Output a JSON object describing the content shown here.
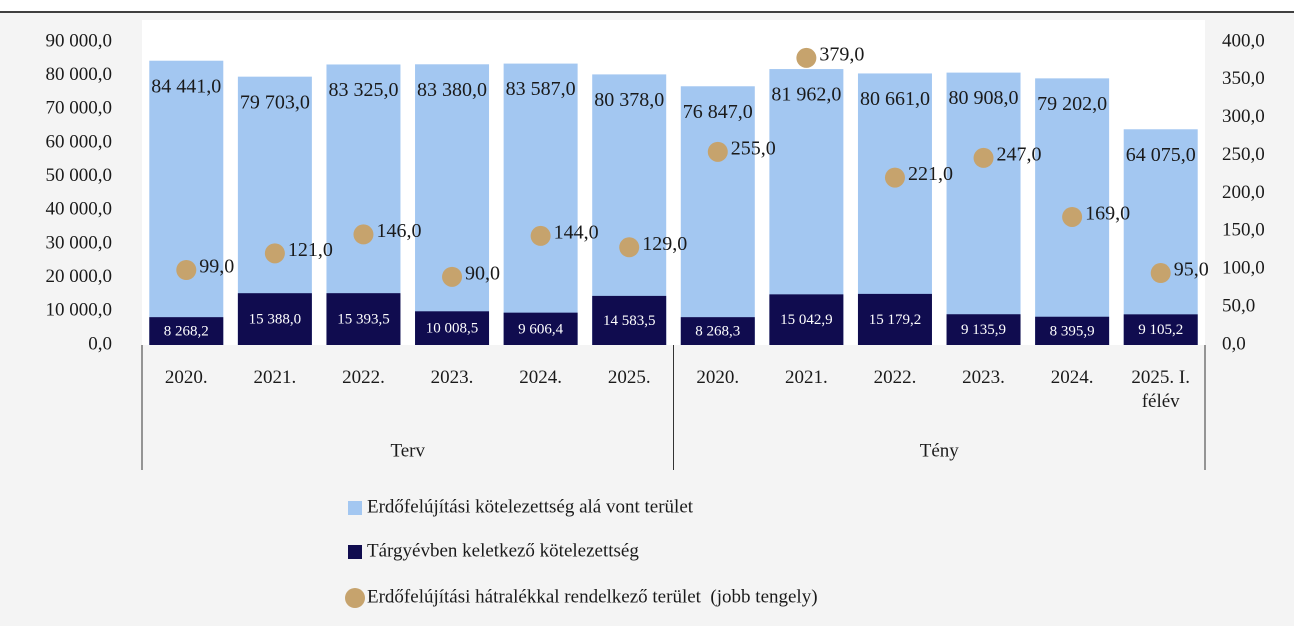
{
  "chart_data": {
    "type": "bar",
    "categories": [
      "2020.",
      "2021.",
      "2022.",
      "2023.",
      "2024.",
      "2025.",
      "2020.",
      "2021.",
      "2022.",
      "2023.",
      "2024.",
      "2025. I. félév"
    ],
    "groups": [
      {
        "label": "Terv",
        "count": 6
      },
      {
        "label": "Tény",
        "count": 6
      }
    ],
    "series": [
      {
        "name": "Erdőfelújítási kötelezettség alá vont terület",
        "type": "bar",
        "color": "#a3c7f1",
        "values": [
          84441,
          79703,
          83325,
          83380,
          83587,
          80378,
          76847,
          81962,
          80661,
          80908,
          79202,
          64075
        ],
        "value_labels": [
          "84 441,0",
          "79 703,0",
          "83 325,0",
          "83 380,0",
          "83 587,0",
          "80 378,0",
          "76 847,0",
          "81 962,0",
          "80 661,0",
          "80 908,0",
          "79 202,0",
          "64 075,0"
        ]
      },
      {
        "name": "Tárgyévben keletkező kötelezettség",
        "type": "bar",
        "color": "#100c4f",
        "values": [
          8268.2,
          15388,
          15393.5,
          10008.5,
          9606.4,
          14583.5,
          8268.3,
          15042.9,
          15179.2,
          9135.9,
          8395.9,
          9105.2
        ],
        "value_labels": [
          "8 268,2",
          "15 388,0",
          "15 393,5",
          "10 008,5",
          "9 606,4",
          "14 583,5",
          "8 268,3",
          "15 042,9",
          "15 179,2",
          "9 135,9",
          "8 395,9",
          "9 105,2"
        ]
      },
      {
        "name": "Erdőfelújítási hátralékkal rendelkező terület  (jobb tengely)",
        "type": "scatter",
        "axis": "y2",
        "color": "#c6a36d",
        "values": [
          99,
          121,
          146,
          90,
          144,
          129,
          255,
          379,
          221,
          247,
          169,
          95
        ],
        "value_labels": [
          "99,0",
          "121,0",
          "146,0",
          "90,0",
          "144,0",
          "129,0",
          "255,0",
          "379,0",
          "221,0",
          "247,0",
          "169,0",
          "95,0"
        ]
      }
    ],
    "ylim": [
      0,
      90000
    ],
    "yticks": [
      {
        "value": 0,
        "label": "0,0"
      },
      {
        "value": 10000,
        "label": "10 000,0"
      },
      {
        "value": 20000,
        "label": "20 000,0"
      },
      {
        "value": 30000,
        "label": "30 000,0"
      },
      {
        "value": 40000,
        "label": "40 000,0"
      },
      {
        "value": 50000,
        "label": "50 000,0"
      },
      {
        "value": 60000,
        "label": "60 000,0"
      },
      {
        "value": 70000,
        "label": "70 000,0"
      },
      {
        "value": 80000,
        "label": "80 000,0"
      },
      {
        "value": 90000,
        "label": "90 000,0"
      }
    ],
    "y2lim": [
      0,
      400
    ],
    "y2ticks": [
      {
        "value": 0,
        "label": "0,0"
      },
      {
        "value": 50,
        "label": "50,0"
      },
      {
        "value": 100,
        "label": "100,0"
      },
      {
        "value": 150,
        "label": "150,0"
      },
      {
        "value": 200,
        "label": "200,0"
      },
      {
        "value": 250,
        "label": "250,0"
      },
      {
        "value": 300,
        "label": "300,0"
      },
      {
        "value": 350,
        "label": "350,0"
      },
      {
        "value": 400,
        "label": "400,0"
      }
    ],
    "legend": "bottom"
  }
}
